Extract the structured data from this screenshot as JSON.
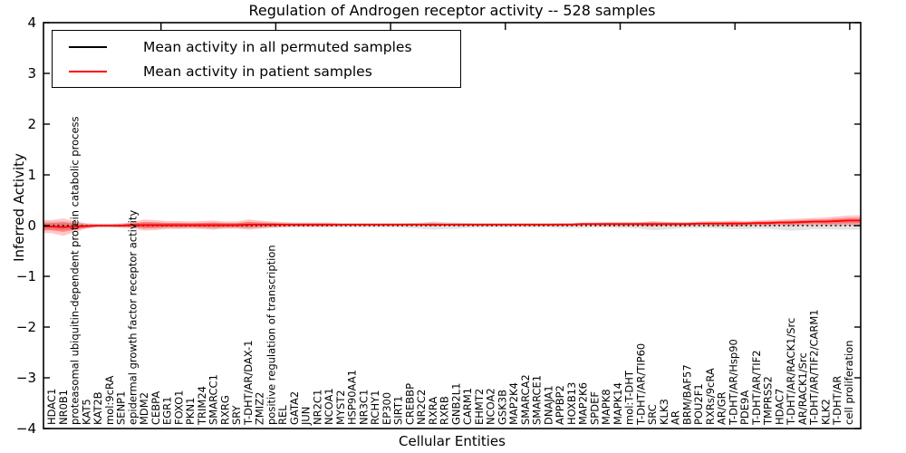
{
  "legend": {
    "entries": [
      {
        "label": "Mean activity in all permuted samples",
        "color": "#000000"
      },
      {
        "label": "Mean activity in patient samples",
        "color": "#ff0000"
      }
    ]
  },
  "chart_data": {
    "type": "line",
    "title": "Regulation of Androgen receptor activity -- 528 samples",
    "xlabel": "Cellular Entities",
    "ylabel": "Inferred Activity",
    "ylim": [
      -4,
      4
    ],
    "yticks": [
      4,
      3,
      2,
      1,
      0,
      -1,
      -2,
      -3,
      -4
    ],
    "grid": false,
    "legend_position": "upper left",
    "categories": [
      "HDAC1",
      "NR0B1",
      "proteasomal ubiquitin-dependent protein catabolic process",
      "KAT5",
      "KAT2B",
      "mol:9cRA",
      "SENP1",
      "epidermal growth factor receptor activity",
      "MDM2",
      "CEBPA",
      "EGR1",
      "FOXO1",
      "PKN1",
      "TRIM24",
      "SMARCC1",
      "RXRG",
      "SRY",
      "T-DHT/AR/DAX-1",
      "ZMIZ2",
      "positive regulation of transcription",
      "REL",
      "GATA2",
      "JUN",
      "NR2C1",
      "NCOA1",
      "MYST2",
      "HSP90AA1",
      "NR3C1",
      "RCHY1",
      "EP300",
      "SIRT1",
      "CREBBP",
      "NR2C2",
      "RXRA",
      "RXRB",
      "GNB2L1",
      "CARM1",
      "EHMT2",
      "NCOA2",
      "GSK3B",
      "MAP2K4",
      "SMARCA2",
      "SMARCE1",
      "DNAJA1",
      "APPBP2",
      "HOXB13",
      "MAP2K6",
      "SPDEF",
      "MAPK8",
      "MAPK14",
      "mol:T-DHT",
      "T-DHT/AR/TIP60",
      "SRC",
      "KLK3",
      "AR",
      "BRM/BAF57",
      "POU2F1",
      "RXRs/9cRA",
      "AR/GR",
      "T-DHT/AR/Hsp90",
      "PDE9A",
      "T-DHT/AR/TIF2",
      "TMPRSS2",
      "HDAC7",
      "T-DHT/AR/RACK1/Src",
      "AR/RACK1/Src",
      "T-DHT/AR/TIF2/CARM1",
      "KLK2",
      "T-DHT/AR",
      "cell proliferation"
    ],
    "series": [
      {
        "name": "Mean activity in all permuted samples",
        "color": "#000000",
        "line_style": "dotted",
        "values": [
          0,
          0,
          0,
          0,
          0,
          0,
          0,
          0,
          0,
          0,
          0,
          0,
          0,
          0,
          0,
          0,
          0,
          0,
          0,
          0,
          0,
          0,
          0,
          0,
          0,
          0,
          0,
          0,
          0,
          0,
          0,
          0,
          0,
          0,
          0,
          0,
          0,
          0,
          0,
          0,
          0,
          0,
          0,
          0,
          0,
          0,
          0,
          0,
          0,
          0,
          0,
          0,
          0,
          0,
          0,
          0,
          0,
          0,
          0,
          0,
          0,
          0,
          0,
          0,
          0,
          0,
          0,
          0,
          0,
          0
        ],
        "band_halfwidth": [
          0.08,
          0.09,
          0.07,
          0.05,
          0.04,
          0.04,
          0.04,
          0.05,
          0.06,
          0.06,
          0.05,
          0.05,
          0.05,
          0.05,
          0.06,
          0.05,
          0.05,
          0.06,
          0.05,
          0.05,
          0.04,
          0.04,
          0.04,
          0.04,
          0.04,
          0.04,
          0.04,
          0.04,
          0.04,
          0.04,
          0.04,
          0.05,
          0.06,
          0.08,
          0.07,
          0.06,
          0.05,
          0.04,
          0.04,
          0.04,
          0.04,
          0.04,
          0.04,
          0.04,
          0.05,
          0.05,
          0.05,
          0.04,
          0.04,
          0.05,
          0.05,
          0.06,
          0.09,
          0.08,
          0.06,
          0.05,
          0.05,
          0.05,
          0.06,
          0.07,
          0.07,
          0.06,
          0.06,
          0.08,
          0.1,
          0.09,
          0.07,
          0.07,
          0.08,
          0.08
        ],
        "band_color": "#999999"
      },
      {
        "name": "Mean activity in patient samples",
        "color": "#ff0000",
        "line_style": "solid",
        "values": [
          -0.02,
          -0.03,
          -0.02,
          -0.01,
          0,
          0,
          0,
          0.01,
          0.01,
          0.01,
          0.01,
          0.01,
          0.01,
          0.01,
          0.01,
          0.01,
          0.01,
          0.02,
          0.02,
          0.02,
          0.02,
          0.02,
          0.02,
          0.02,
          0.02,
          0.02,
          0.02,
          0.02,
          0.02,
          0.02,
          0.02,
          0.02,
          0.02,
          0.02,
          0.02,
          0.02,
          0.02,
          0.02,
          0.02,
          0.02,
          0.02,
          0.02,
          0.02,
          0.02,
          0.02,
          0.02,
          0.03,
          0.03,
          0.03,
          0.03,
          0.03,
          0.03,
          0.03,
          0.03,
          0.03,
          0.03,
          0.04,
          0.04,
          0.04,
          0.04,
          0.04,
          0.05,
          0.05,
          0.06,
          0.06,
          0.07,
          0.08,
          0.08,
          0.09,
          0.1
        ],
        "band_halfwidth": [
          0.13,
          0.17,
          0.11,
          0.05,
          0.03,
          0.03,
          0.04,
          0.06,
          0.11,
          0.1,
          0.08,
          0.08,
          0.07,
          0.08,
          0.09,
          0.07,
          0.07,
          0.1,
          0.08,
          0.06,
          0.05,
          0.04,
          0.04,
          0.04,
          0.04,
          0.03,
          0.03,
          0.03,
          0.03,
          0.03,
          0.03,
          0.03,
          0.03,
          0.04,
          0.03,
          0.03,
          0.03,
          0.03,
          0.03,
          0.03,
          0.03,
          0.03,
          0.03,
          0.03,
          0.03,
          0.03,
          0.03,
          0.03,
          0.04,
          0.04,
          0.04,
          0.04,
          0.05,
          0.04,
          0.04,
          0.04,
          0.04,
          0.05,
          0.05,
          0.06,
          0.05,
          0.05,
          0.06,
          0.06,
          0.07,
          0.07,
          0.07,
          0.08,
          0.09,
          0.1
        ],
        "band_color": "#ff0000"
      }
    ]
  }
}
